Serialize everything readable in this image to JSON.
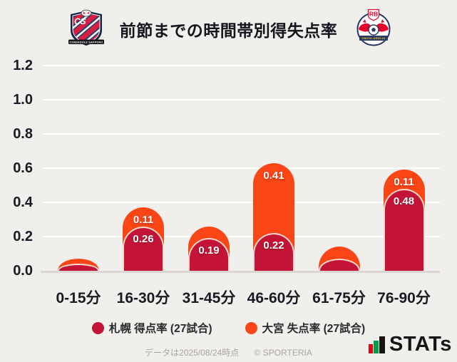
{
  "header": {
    "title": "前節までの時間帯別得失点率",
    "logos": {
      "left": {
        "initials": "CS",
        "banner": "CONSADOLE SAPPORO"
      },
      "right": {
        "initials": "RB",
        "banner": "OMIYA ARDIJA"
      }
    }
  },
  "chart_data": {
    "type": "bar",
    "stacked": true,
    "title": "前節までの時間帯別得失点率",
    "categories": [
      "0-15分",
      "16-30分",
      "31-45分",
      "46-60分",
      "61-75分",
      "76-90分"
    ],
    "series": [
      {
        "name": "札幌 得点率 (27試合)",
        "color": "#c31437",
        "outline_color": "#ffd9cd",
        "values": [
          0.04,
          0.26,
          0.19,
          0.22,
          0.07,
          0.48
        ],
        "data_labels": [
          "",
          "0.26",
          "0.19",
          "0.22",
          "",
          "0.48"
        ]
      },
      {
        "name": "大宮 失点率 (27試合)",
        "color": "#fa4616",
        "values": [
          0.03,
          0.11,
          0.07,
          0.41,
          0.07,
          0.11
        ],
        "data_labels": [
          "",
          "0.11",
          "",
          "0.41",
          "",
          "0.11"
        ]
      }
    ],
    "ylim": [
      0,
      1.2
    ],
    "yticks": [
      1.2,
      1.0,
      0.8,
      0.6,
      0.4,
      0.2,
      0.0
    ],
    "ytick_labels": [
      "1.2",
      "1.0",
      "0.8",
      "0.6",
      "0.4",
      "0.2",
      "0.0"
    ],
    "grid": true,
    "legend_position": "bottom"
  },
  "footer": {
    "data_note": "データは2025/08/24時点",
    "copyright": "© SPORTERIA",
    "brand": "STATs"
  }
}
